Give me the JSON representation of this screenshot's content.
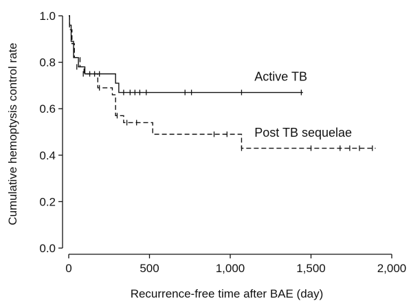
{
  "chart_data": {
    "type": "line",
    "title": "",
    "xlabel": "Recurrence-free time after BAE (day)",
    "ylabel": "Cumulative hemoptysis control rate",
    "xlim": [
      0,
      2000
    ],
    "ylim": [
      0,
      1.0
    ],
    "xticks": [
      0,
      500,
      1000,
      1500,
      2000
    ],
    "xtick_labels": [
      "0",
      "500",
      "1,000",
      "1,500",
      "2,000"
    ],
    "yticks": [
      0,
      0.2,
      0.4,
      0.6,
      0.8,
      1.0
    ],
    "ytick_labels": [
      "0.0",
      "0.2",
      "0.4",
      "0.6",
      "0.8",
      "1.0"
    ],
    "grid": false,
    "legend": "none",
    "series": [
      {
        "name": "Active TB",
        "line_style": "solid",
        "color": "#111111",
        "label_at": [
          1150,
          0.72
        ],
        "steps": [
          [
            0,
            1.0
          ],
          [
            5,
            0.96
          ],
          [
            15,
            0.89
          ],
          [
            30,
            0.82
          ],
          [
            60,
            0.78
          ],
          [
            100,
            0.75
          ],
          [
            290,
            0.71
          ],
          [
            310,
            0.67
          ],
          [
            1450,
            0.67
          ]
        ],
        "censored": [
          [
            50,
            0.78
          ],
          [
            90,
            0.75
          ],
          [
            130,
            0.75
          ],
          [
            190,
            0.75
          ],
          [
            340,
            0.67
          ],
          [
            380,
            0.67
          ],
          [
            410,
            0.67
          ],
          [
            440,
            0.67
          ],
          [
            480,
            0.67
          ],
          [
            720,
            0.67
          ],
          [
            760,
            0.67
          ],
          [
            1070,
            0.67
          ],
          [
            1440,
            0.67
          ]
        ]
      },
      {
        "name": "Post TB sequelae",
        "line_style": "dashed",
        "color": "#111111",
        "label_at": [
          1150,
          0.48
        ],
        "steps": [
          [
            0,
            1.0
          ],
          [
            5,
            0.94
          ],
          [
            20,
            0.88
          ],
          [
            35,
            0.82
          ],
          [
            70,
            0.78
          ],
          [
            95,
            0.75
          ],
          [
            180,
            0.69
          ],
          [
            270,
            0.66
          ],
          [
            290,
            0.57
          ],
          [
            340,
            0.54
          ],
          [
            520,
            0.49
          ],
          [
            1070,
            0.43
          ],
          [
            1900,
            0.43
          ]
        ],
        "censored": [
          [
            160,
            0.75
          ],
          [
            190,
            0.69
          ],
          [
            300,
            0.57
          ],
          [
            360,
            0.54
          ],
          [
            420,
            0.54
          ],
          [
            900,
            0.49
          ],
          [
            980,
            0.49
          ],
          [
            1070,
            0.43
          ],
          [
            1500,
            0.43
          ],
          [
            1680,
            0.43
          ],
          [
            1740,
            0.43
          ],
          [
            1800,
            0.43
          ],
          [
            1880,
            0.43
          ]
        ]
      }
    ]
  }
}
